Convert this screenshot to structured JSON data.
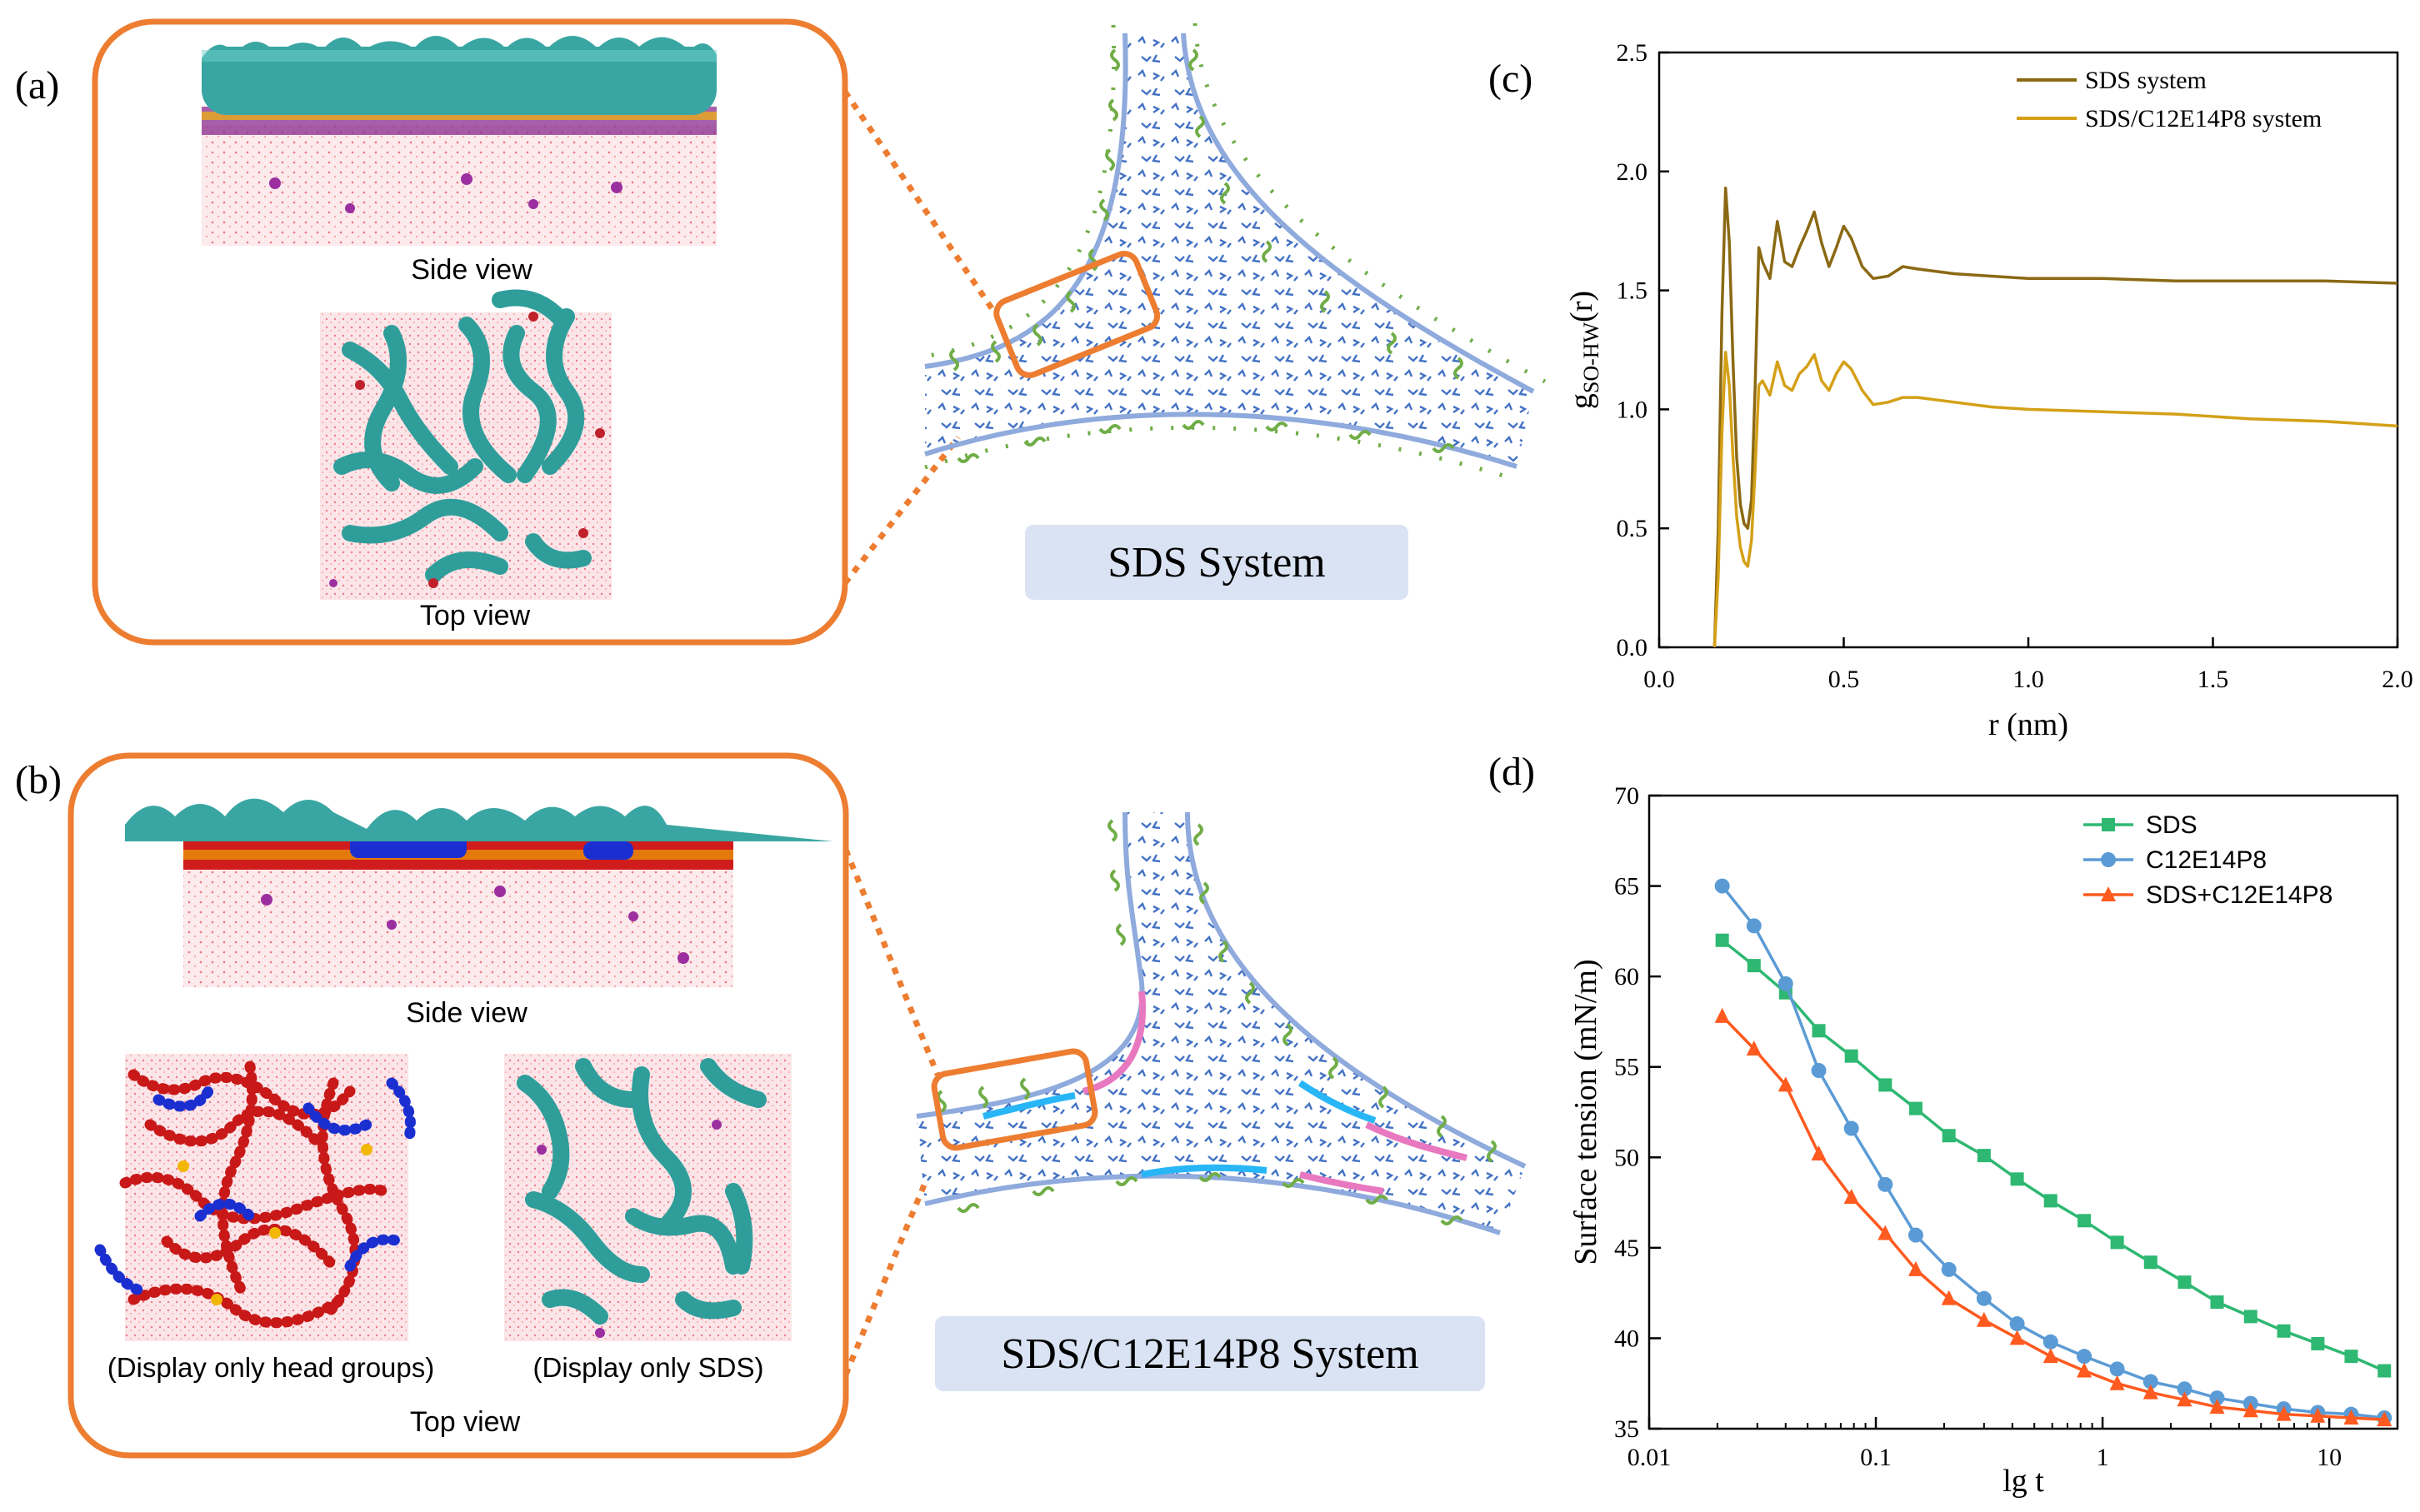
{
  "panel_labels": {
    "a": "(a)",
    "b": "(b)",
    "c": "(c)",
    "d": "(d)"
  },
  "panel_a": {
    "side_view_caption": "Side view",
    "top_view_caption": "Top view",
    "system_label": "SDS System"
  },
  "panel_b": {
    "side_view_caption": "Side view",
    "left_top_caption": "(Display only head groups)",
    "right_top_caption": "(Display only SDS)",
    "top_view_caption": "Top view",
    "system_label": "SDS/C12E14P8 System"
  },
  "colors": {
    "orange_frame": "#ed7d31",
    "tail_green": "#70ad47",
    "water_blue": "#4472c4",
    "interface_blue": "#8faadc",
    "label_box": "#dae3f3",
    "rdf_sds": "#8b6914",
    "rdf_mix": "#d4a017",
    "st_sds": "#2eb872",
    "st_c12": "#5b9bd5",
    "st_mix": "#ff5a1f"
  },
  "chart_data": [
    {
      "type": "line",
      "xlabel": "r (nm)",
      "ylabel": "g",
      "ylabel_sub": "SO-HW",
      "ylabel_suffix": "(r)",
      "xlim": [
        0,
        2.0
      ],
      "ylim": [
        0,
        2.5
      ],
      "xticks": [
        "0.0",
        "0.5",
        "1.0",
        "1.5",
        "2.0"
      ],
      "yticks": [
        "0.0",
        "0.5",
        "1.0",
        "1.5",
        "2.0",
        "2.5"
      ],
      "legend_position": "top-right",
      "series": [
        {
          "name": "SDS system",
          "x": [
            0.15,
            0.16,
            0.17,
            0.18,
            0.19,
            0.2,
            0.21,
            0.22,
            0.23,
            0.24,
            0.25,
            0.26,
            0.27,
            0.28,
            0.3,
            0.32,
            0.34,
            0.36,
            0.38,
            0.4,
            0.42,
            0.44,
            0.46,
            0.48,
            0.5,
            0.52,
            0.55,
            0.58,
            0.62,
            0.66,
            0.7,
            0.8,
            0.9,
            1.0,
            1.2,
            1.4,
            1.6,
            1.8,
            2.0
          ],
          "y": [
            0.0,
            0.5,
            1.4,
            1.93,
            1.7,
            1.2,
            0.8,
            0.6,
            0.52,
            0.5,
            0.62,
            1.1,
            1.68,
            1.62,
            1.55,
            1.79,
            1.62,
            1.6,
            1.68,
            1.75,
            1.83,
            1.7,
            1.6,
            1.68,
            1.77,
            1.72,
            1.6,
            1.55,
            1.56,
            1.6,
            1.59,
            1.57,
            1.56,
            1.55,
            1.55,
            1.54,
            1.54,
            1.54,
            1.53
          ]
        },
        {
          "name": "SDS/C12E14P8 system",
          "x": [
            0.15,
            0.16,
            0.17,
            0.18,
            0.19,
            0.2,
            0.21,
            0.22,
            0.23,
            0.24,
            0.25,
            0.26,
            0.27,
            0.28,
            0.3,
            0.32,
            0.34,
            0.36,
            0.38,
            0.4,
            0.42,
            0.44,
            0.46,
            0.48,
            0.5,
            0.52,
            0.55,
            0.58,
            0.62,
            0.66,
            0.7,
            0.8,
            0.9,
            1.0,
            1.2,
            1.4,
            1.6,
            1.8,
            2.0
          ],
          "y": [
            0.0,
            0.3,
            0.9,
            1.24,
            1.1,
            0.8,
            0.55,
            0.42,
            0.36,
            0.34,
            0.45,
            0.75,
            1.1,
            1.12,
            1.06,
            1.2,
            1.1,
            1.08,
            1.15,
            1.18,
            1.23,
            1.12,
            1.08,
            1.15,
            1.2,
            1.17,
            1.08,
            1.02,
            1.03,
            1.05,
            1.05,
            1.03,
            1.01,
            1.0,
            0.99,
            0.98,
            0.96,
            0.95,
            0.93
          ]
        }
      ]
    },
    {
      "type": "line",
      "xscale": "log",
      "xlabel": "lg t",
      "ylabel": "Surface tension (mN/m)",
      "xlim": [
        0.01,
        20
      ],
      "ylim": [
        35,
        70
      ],
      "xticks": [
        {
          "value": 0.01,
          "label": "0.01"
        },
        {
          "value": 0.1,
          "label": "0.1"
        },
        {
          "value": 1,
          "label": "1"
        },
        {
          "value": 10,
          "label": "10"
        }
      ],
      "yticks": [
        "35",
        "40",
        "45",
        "50",
        "55",
        "60",
        "65",
        "70"
      ],
      "legend_position": "top-right",
      "series": [
        {
          "name": "SDS",
          "marker": "square",
          "x": [
            0.021,
            0.029,
            0.04,
            0.056,
            0.078,
            0.11,
            0.15,
            0.21,
            0.3,
            0.42,
            0.59,
            0.83,
            1.16,
            1.63,
            2.3,
            3.2,
            4.5,
            6.3,
            8.9,
            12.5,
            17.5
          ],
          "y": [
            62.0,
            60.6,
            59.1,
            57.0,
            55.6,
            54.0,
            52.7,
            51.2,
            50.1,
            48.8,
            47.6,
            46.5,
            45.3,
            44.2,
            43.1,
            42.0,
            41.2,
            40.4,
            39.7,
            39.0,
            38.2
          ]
        },
        {
          "name": "C12E14P8",
          "marker": "circle",
          "x": [
            0.021,
            0.029,
            0.04,
            0.056,
            0.078,
            0.11,
            0.15,
            0.21,
            0.3,
            0.42,
            0.59,
            0.83,
            1.16,
            1.63,
            2.3,
            3.2,
            4.5,
            6.3,
            8.9,
            12.5,
            17.5
          ],
          "y": [
            65.0,
            62.8,
            59.6,
            54.8,
            51.6,
            48.5,
            45.7,
            43.8,
            42.2,
            40.8,
            39.8,
            39.0,
            38.3,
            37.6,
            37.2,
            36.7,
            36.4,
            36.1,
            35.9,
            35.8,
            35.6
          ]
        },
        {
          "name": "SDS+C12E14P8",
          "marker": "triangle",
          "x": [
            0.021,
            0.029,
            0.04,
            0.056,
            0.078,
            0.11,
            0.15,
            0.21,
            0.3,
            0.42,
            0.59,
            0.83,
            1.16,
            1.63,
            2.3,
            3.2,
            4.5,
            6.3,
            8.9,
            12.5,
            17.5
          ],
          "y": [
            57.8,
            56.0,
            54.0,
            50.2,
            47.8,
            45.8,
            43.8,
            42.2,
            41.0,
            40.0,
            39.0,
            38.2,
            37.5,
            37.0,
            36.6,
            36.2,
            36.0,
            35.8,
            35.7,
            35.6,
            35.5
          ]
        }
      ]
    }
  ]
}
